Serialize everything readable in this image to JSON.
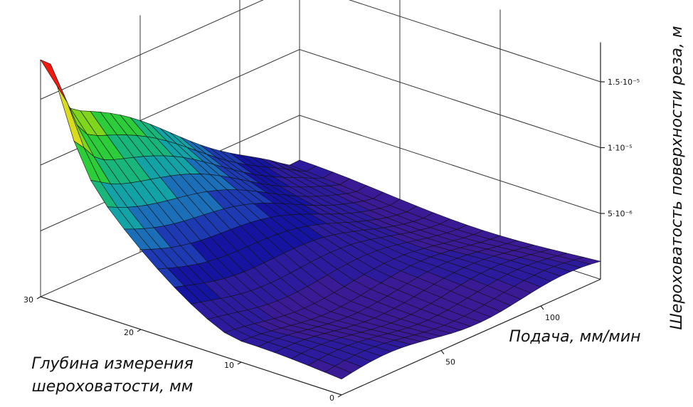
{
  "chart_data": {
    "type": "surface3d",
    "zlabel": "Шероховатость поверхности реза, м",
    "xlabel": "Подача, мм/мин",
    "ylabel_line1": "Глубина измерения",
    "ylabel_line2": "шероховатости, мм",
    "z_ticks": [
      {
        "value": 5e-06,
        "label": "5·10⁻⁶"
      },
      {
        "value": 1e-05,
        "label": "1·10⁻⁵"
      },
      {
        "value": 1.5e-05,
        "label": "1.5·10⁻⁵"
      }
    ],
    "depth_ticks": [
      {
        "value": 0,
        "label": "0"
      },
      {
        "value": 10,
        "label": "10"
      },
      {
        "value": 20,
        "label": "20"
      },
      {
        "value": 30,
        "label": "30"
      }
    ],
    "feed_ticks": [
      {
        "value": 50,
        "label": "50"
      },
      {
        "value": 100,
        "label": "100"
      }
    ],
    "feed_range": [
      0,
      130
    ],
    "depth_range": [
      0,
      30
    ],
    "zlim": [
      0,
      1.8e-05
    ],
    "colormap": [
      "#3b1a96",
      "#2d1b9e",
      "#1414a0",
      "#1e3ab2",
      "#1b6fb9",
      "#13a3a6",
      "#18b67a",
      "#2ccc3a",
      "#80d61c",
      "#d8dc1c",
      "#ff9a10",
      "#f41a10"
    ],
    "surface_peak": {
      "feed": 0,
      "depth": 30,
      "z": 1.75e-05
    },
    "background": "#ffffff"
  }
}
